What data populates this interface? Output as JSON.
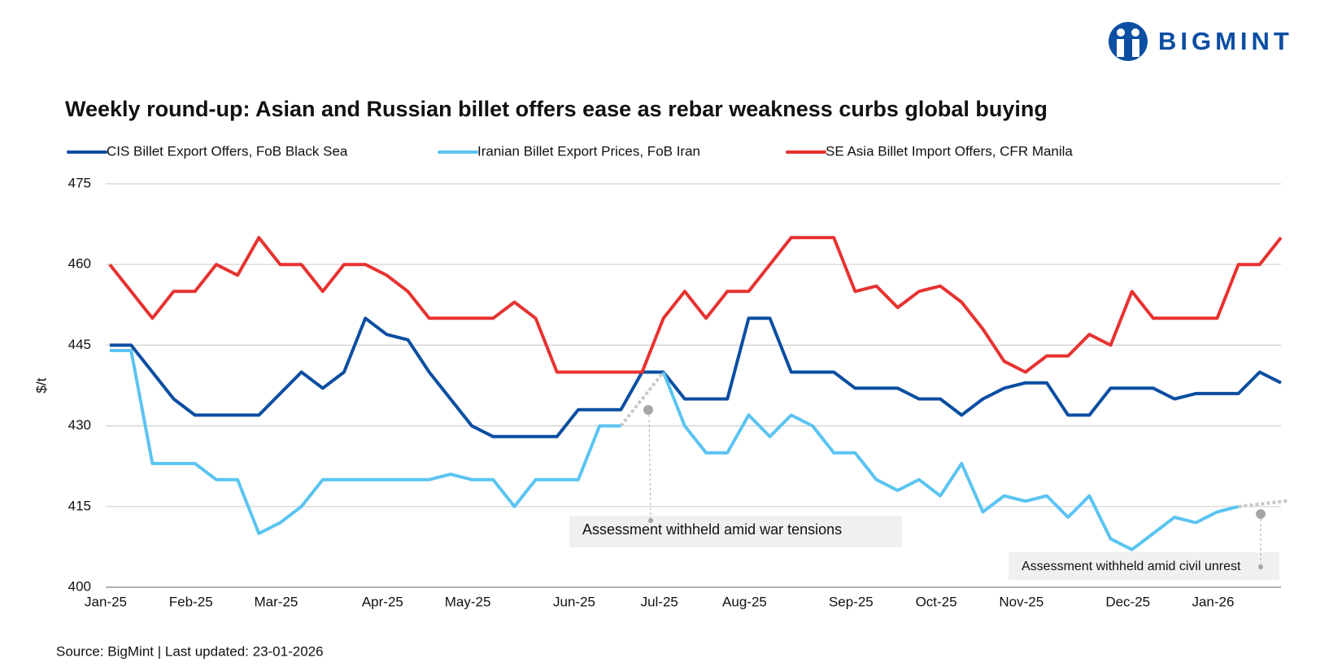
{
  "logo": "BIGMINT",
  "chart_data": {
    "type": "line",
    "title": "Weekly round-up: Asian and Russian billet offers ease as rebar weakness curbs global buying",
    "y_label": "$/t",
    "source": "Source: BigMint | Last updated: 23-01-2026",
    "annotations": [
      "Assessment withheld amid  war tensions",
      "Assessment withheld amid civil unrest"
    ],
    "categories": [
      "Jan-25",
      null,
      null,
      null,
      "Feb-25",
      null,
      null,
      null,
      "Mar-25",
      null,
      null,
      null,
      null,
      "Apr-25",
      null,
      null,
      null,
      "May-25",
      null,
      null,
      null,
      null,
      "Jun-25",
      null,
      null,
      null,
      "Jul-25",
      null,
      null,
      null,
      "Aug-25",
      null,
      null,
      null,
      null,
      "Sep-25",
      null,
      null,
      null,
      "Oct-25",
      null,
      null,
      null,
      "Nov-25",
      null,
      null,
      null,
      null,
      "Dec-25",
      null,
      null,
      null,
      "Jan-26",
      null,
      null,
      null
    ],
    "series": [
      {
        "name": "CIS Billet Export Offers, FoB Black Sea",
        "color": "#0b4ea2",
        "values": [
          445,
          445,
          440,
          435,
          432,
          432,
          432,
          432,
          436,
          440,
          437,
          440,
          450,
          447,
          446,
          440,
          435,
          430,
          428,
          428,
          428,
          428,
          433,
          433,
          433,
          440,
          440,
          435,
          435,
          435,
          450,
          450,
          440,
          440,
          440,
          437,
          437,
          437,
          435,
          435,
          432,
          435,
          437,
          438,
          438,
          432,
          432,
          437,
          437,
          437,
          435,
          436,
          436,
          436,
          440,
          438
        ]
      },
      {
        "name": "Iranian Billet Export Prices, FoB Iran",
        "color": "#5bc4f1",
        "values": [
          444,
          444,
          423,
          423,
          423,
          420,
          420,
          410,
          412,
          415,
          420,
          420,
          420,
          420,
          420,
          420,
          421,
          420,
          420,
          415,
          420,
          420,
          420,
          430,
          430,
          null,
          440,
          430,
          425,
          425,
          432,
          428,
          432,
          430,
          425,
          425,
          420,
          418,
          420,
          417,
          423,
          414,
          417,
          416,
          417,
          413,
          417,
          409,
          407,
          410,
          413,
          412,
          414,
          415,
          null,
          null
        ]
      },
      {
        "name": "SE Asia Billet Import Offers, CFR Manila",
        "color": "#e63331",
        "values": [
          460,
          455,
          450,
          455,
          455,
          460,
          458,
          465,
          460,
          460,
          455,
          460,
          460,
          458,
          455,
          450,
          450,
          450,
          450,
          453,
          450,
          440,
          440,
          440,
          440,
          440,
          450,
          455,
          450,
          455,
          455,
          460,
          465,
          465,
          465,
          455,
          456,
          452,
          455,
          456,
          453,
          448,
          442,
          440,
          443,
          443,
          447,
          445,
          455,
          450,
          450,
          450,
          450,
          460,
          460,
          465
        ]
      }
    ],
    "ylim": [
      400,
      475
    ],
    "yticks": [
      400,
      415,
      430,
      445,
      460,
      475
    ],
    "grid": true
  }
}
